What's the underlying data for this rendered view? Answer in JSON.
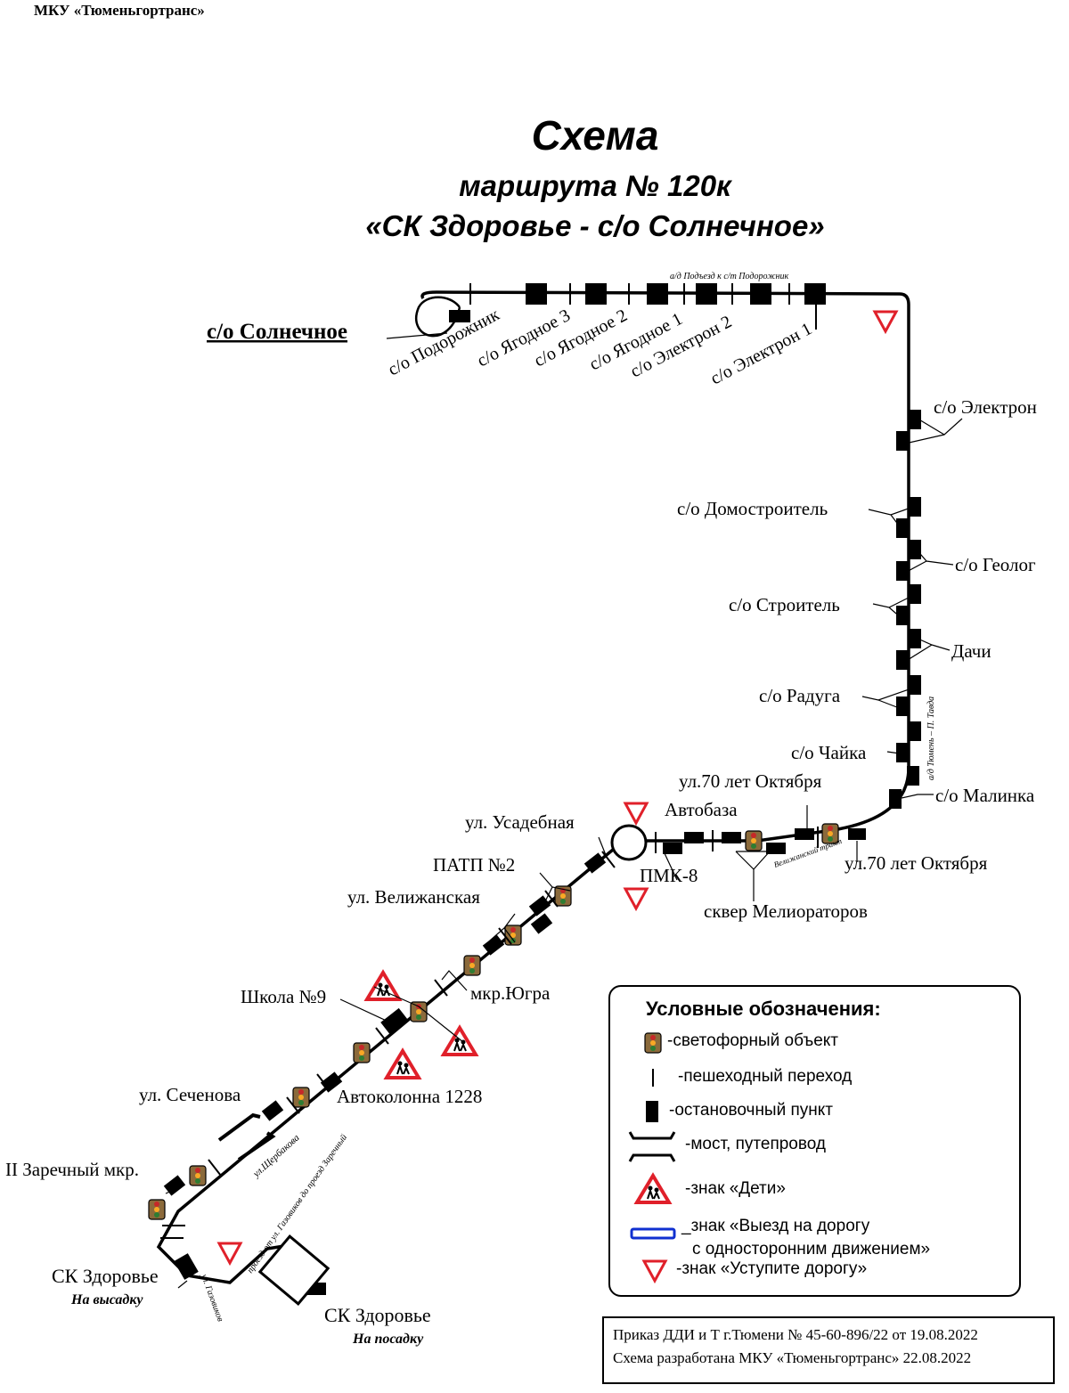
{
  "header": {
    "org": "МКУ «Тюменьгортранс»",
    "title": "Схема",
    "route": "маршрута № 120к",
    "route_name": "«СК Здоровье - с/о Солнечное»"
  },
  "map": {
    "terminal_north": "с/о Солнечное",
    "top_road_label": "а/д Подъезд к с/т Подорожник",
    "highway_label": "а/д Тюмень – П. Тавда",
    "velizh_label": "Велижанский тракт",
    "stops_top": [
      "с/о Подорожник",
      "с/о Ягодное 3",
      "с/о Ягодное 2",
      "с/о Ягодное 1",
      "с/о Электрон 2",
      "с/о Электрон 1"
    ],
    "stops_east": [
      "с/о Электрон",
      "с/о Домостроитель",
      "с/о Геолог",
      "с/о Строитель",
      "Дачи",
      "с/о Радуга",
      "с/о Чайка",
      "с/о Малинка"
    ],
    "stops_middle": [
      "ул.70 лет Октября",
      "ул.70 лет Октября",
      "Автобаза",
      "ПМК-8",
      "сквер Мелиораторов"
    ],
    "stops_west": [
      "ул. Усадебная",
      "ПАТП №2",
      "ул. Велижанская",
      "мкр.Югра",
      "Школа №9",
      "Автоколонна 1228",
      "ул. Сеченова",
      "II Заречный мкр."
    ],
    "street_sherbakova": "ул.Щербакова",
    "street_gazovikov": "ул. Газовиков",
    "passage_label": "проезд от ул. Газовиков до проезд Заречный",
    "sk_dropoff": "СК Здоровье",
    "sk_dropoff_note": "На высадку",
    "sk_pickup": "СК Здоровье",
    "sk_pickup_note": "На посадку"
  },
  "legend": {
    "title": "Условные обозначения:",
    "items": [
      "-светофорный объект",
      "-пешеходный переход",
      "-остановочный пункт",
      "-мост, путепровод",
      "-знак «Дети»",
      "_знак «Выезд на дорогу",
      "с односторонним движением»",
      "-знак «Уступите дорогу»"
    ]
  },
  "order": {
    "line1": "Приказ ДДИ и Т г.Тюмени № 45-60-896/22 от 19.08.2022",
    "line2": "Схема разработана МКУ «Тюменьгортранс» 22.08.2022"
  },
  "colors": {
    "route": "#000000",
    "warning_red": "#e0202a",
    "oneway_blue": "#1030d0"
  }
}
